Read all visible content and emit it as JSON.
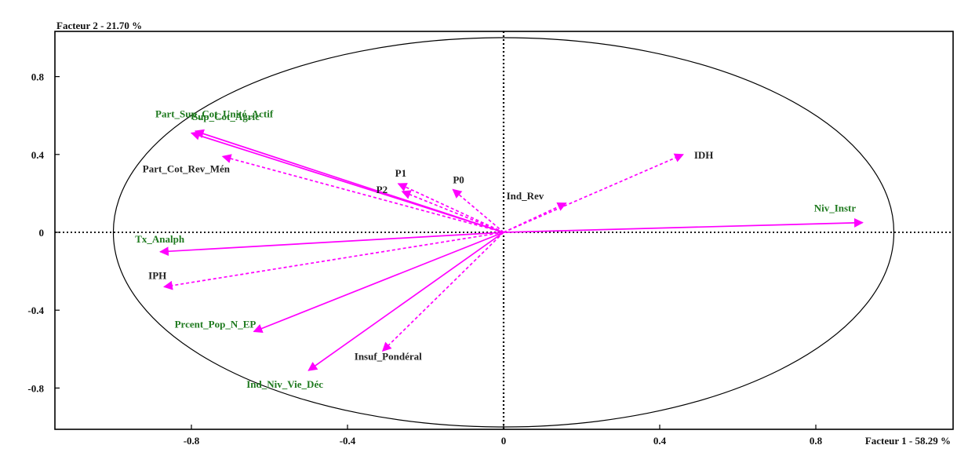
{
  "chart_data": {
    "type": "scatter",
    "subtype": "pca-correlation-circle",
    "x_axis_title": "Facteur 1  -  58.29 %",
    "y_axis_title": "Facteur 2  -  21.70 %",
    "xlim": [
      -1.02,
      1.02
    ],
    "ylim": [
      -1.02,
      1.02
    ],
    "x_ticks": [
      {
        "value": -0.8,
        "label": "-0.8"
      },
      {
        "value": -0.4,
        "label": "-0.4"
      },
      {
        "value": 0,
        "label": "0"
      },
      {
        "value": 0.4,
        "label": "0.4"
      },
      {
        "value": 0.8,
        "label": "0.8"
      }
    ],
    "y_ticks": [
      {
        "value": 0.8,
        "label": "0.8"
      },
      {
        "value": 0.4,
        "label": "0.4"
      },
      {
        "value": 0,
        "label": "0"
      },
      {
        "value": -0.4,
        "label": "-0.4"
      },
      {
        "value": -0.8,
        "label": "-0.8"
      }
    ],
    "unit_circle": true,
    "zero_lines": "dotted",
    "arrow_color": "#ff00ff",
    "colors": {
      "active_label": "#1f7a1f",
      "supplementary_label": "#222222",
      "axis": "#000000"
    },
    "series": [
      {
        "label": "Niv_Instr",
        "x": 0.92,
        "y": 0.05,
        "style": "solid",
        "label_type": "active"
      },
      {
        "label": "Sup_Cot_Agric",
        "x": -0.79,
        "y": 0.52,
        "style": "solid",
        "label_type": "active"
      },
      {
        "label": "Part_Sup_Cot_Unité_Actif",
        "x": -0.8,
        "y": 0.51,
        "style": "solid",
        "label_type": "active"
      },
      {
        "label": "Tx_Analph",
        "x": -0.88,
        "y": -0.1,
        "style": "solid",
        "label_type": "active"
      },
      {
        "label": "Prcent_Pop_N_EP",
        "x": -0.64,
        "y": -0.51,
        "style": "solid",
        "label_type": "active"
      },
      {
        "label": "Ind_Niv_Vie_Déc",
        "x": -0.5,
        "y": -0.71,
        "style": "solid",
        "label_type": "active"
      },
      {
        "label": "IDH",
        "x": 0.46,
        "y": 0.4,
        "style": "dashed",
        "label_type": "supplementary"
      },
      {
        "label": "Ind_Rev",
        "x": 0.16,
        "y": 0.15,
        "style": "dashed",
        "label_type": "supplementary"
      },
      {
        "label": "P0",
        "x": -0.13,
        "y": 0.22,
        "style": "dashed",
        "label_type": "supplementary"
      },
      {
        "label": "P1",
        "x": -0.27,
        "y": 0.25,
        "style": "dashed",
        "label_type": "supplementary"
      },
      {
        "label": "P2",
        "x": -0.26,
        "y": 0.21,
        "style": "dashed",
        "label_type": "supplementary"
      },
      {
        "label": "Part_Cot_Rev_Mén",
        "x": -0.72,
        "y": 0.39,
        "style": "dashed",
        "label_type": "supplementary"
      },
      {
        "label": "IPH",
        "x": -0.87,
        "y": -0.28,
        "style": "dashed",
        "label_type": "supplementary"
      },
      {
        "label": "Insuf_Pondéral",
        "x": -0.31,
        "y": -0.61,
        "style": "dashed",
        "label_type": "supplementary"
      }
    ]
  }
}
